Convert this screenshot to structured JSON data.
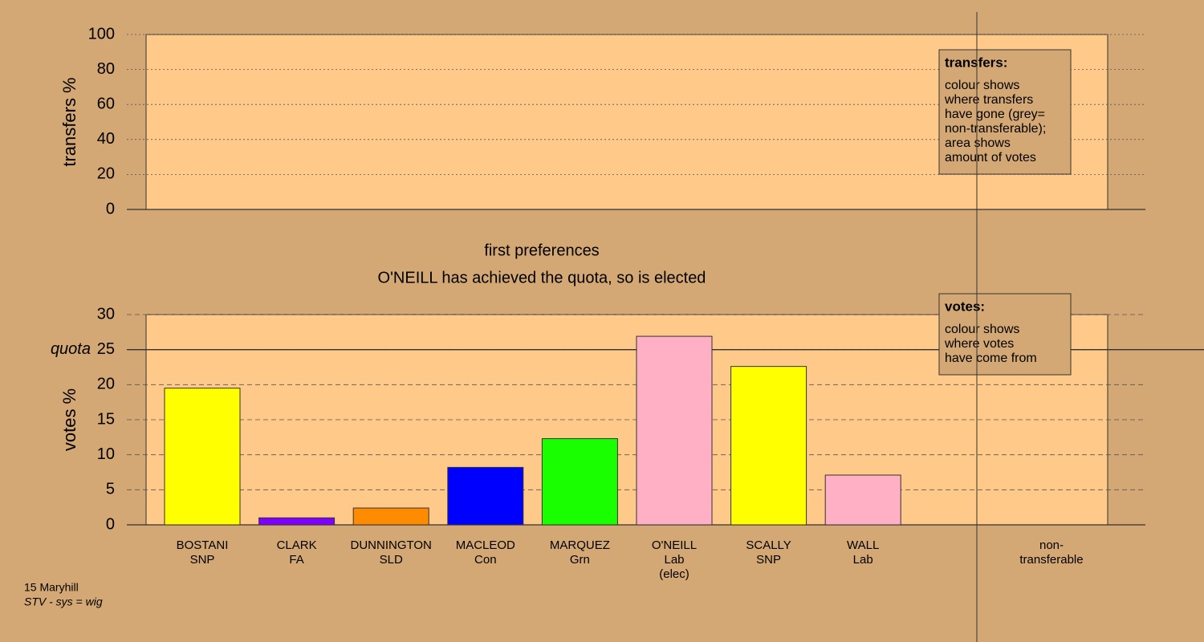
{
  "chart_data": [
    {
      "type": "bar",
      "ylabel": "transfers %",
      "ylim": [
        0,
        100
      ],
      "yticks": [
        0,
        20,
        40,
        60,
        80,
        100
      ],
      "grid": true,
      "legend_position": "upper right",
      "note": {
        "title": "transfers:",
        "paragraphs": [
          [
            "colour shows",
            "where transfers",
            "have gone (grey=",
            "non-transferable);"
          ],
          [
            "area shows",
            "amount of votes"
          ]
        ]
      }
    },
    {
      "type": "bar",
      "title": "first preferences",
      "subtitle": "O'NEILL has achieved the quota, so is elected",
      "ylabel": "votes %",
      "ylim": [
        0,
        30
      ],
      "yticks": [
        0,
        5,
        10,
        15,
        20,
        25,
        30
      ],
      "grid": true,
      "quota": {
        "value": 25,
        "label": "quota"
      },
      "categories": [
        [
          "BOSTANI",
          "SNP"
        ],
        [
          "CLARK",
          "FA"
        ],
        [
          "DUNNINGTON",
          "SLD"
        ],
        [
          "MACLEOD",
          "Con"
        ],
        [
          "MARQUEZ",
          "Grn"
        ],
        [
          "O'NEILL",
          "Lab",
          "(elec)"
        ],
        [
          "SCALLY",
          "SNP"
        ],
        [
          "WALL",
          "Lab"
        ],
        [
          "non-",
          "transferable"
        ]
      ],
      "values": [
        19.5,
        1.0,
        2.4,
        8.2,
        12.3,
        26.9,
        22.6,
        7.1,
        null
      ],
      "colors": [
        "#ffff00",
        "#8000ff",
        "#ff8c00",
        "#0000ff",
        "#1aff00",
        "#ffb0c4",
        "#ffff00",
        "#ffb0c4",
        "#aaaaaa"
      ],
      "legend_position": "upper right",
      "note": {
        "title": "votes:",
        "paragraphs": [
          [
            "colour shows",
            "where votes",
            "have come from"
          ]
        ]
      }
    }
  ],
  "footer": [
    "15 Maryhill",
    "STV - sys = wig"
  ]
}
